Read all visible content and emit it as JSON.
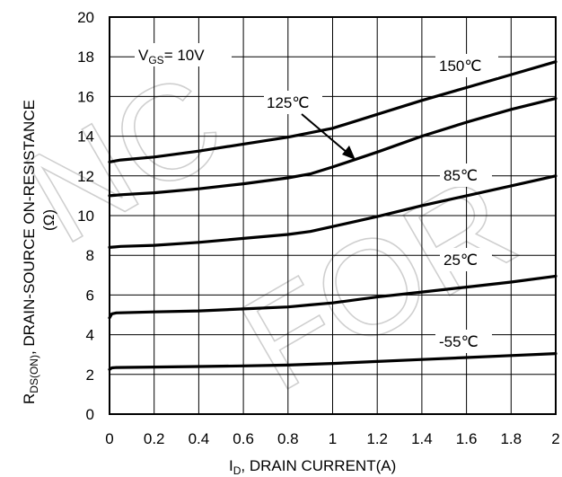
{
  "chart_data": {
    "type": "line",
    "xlabel": {
      "main": "I",
      "sub": "D",
      "rest": ", DRAIN CURRENT(A)"
    },
    "ylabel": {
      "line1_main": "R",
      "line1_sub": "DS(ON)",
      "line1_rest": ",   DRAIN-SOURCE ON-RESISTANCE",
      "line2": "(Ω)"
    },
    "xlim": [
      0,
      2
    ],
    "ylim": [
      0,
      20
    ],
    "x_ticks": [
      0,
      0.2,
      0.4,
      0.6,
      0.8,
      1,
      1.2,
      1.4,
      1.6,
      1.8,
      2
    ],
    "x_tick_labels": [
      "0",
      "0.2",
      "0.4",
      "0.6",
      "0.8",
      "1",
      "1.2",
      "1.4",
      "1.6",
      "1.8",
      "2"
    ],
    "y_ticks": [
      0,
      2,
      4,
      6,
      8,
      10,
      12,
      14,
      16,
      18,
      20
    ],
    "y_tick_labels": [
      "0",
      "2",
      "4",
      "6",
      "8",
      "10",
      "12",
      "14",
      "16",
      "18",
      "20"
    ],
    "grid": true,
    "condition": {
      "main": "V",
      "sub": "GS",
      "rest": "= 10V"
    },
    "series": [
      {
        "name": "150℃",
        "x": [
          0,
          0.05,
          0.2,
          0.4,
          0.6,
          0.8,
          1.0,
          1.2,
          1.4,
          1.6,
          1.8,
          2.0
        ],
        "values": [
          12.7,
          12.8,
          12.95,
          13.25,
          13.6,
          13.95,
          14.4,
          15.1,
          15.8,
          16.45,
          17.1,
          17.75
        ]
      },
      {
        "name": "125℃",
        "x": [
          0,
          0.05,
          0.2,
          0.4,
          0.6,
          0.8,
          0.9,
          1.0,
          1.2,
          1.4,
          1.6,
          1.8,
          2.0
        ],
        "values": [
          11.0,
          11.05,
          11.15,
          11.35,
          11.6,
          11.9,
          12.1,
          12.45,
          13.2,
          14.0,
          14.7,
          15.35,
          15.9
        ]
      },
      {
        "name": "85℃",
        "x": [
          0,
          0.05,
          0.2,
          0.4,
          0.6,
          0.8,
          0.9,
          1.0,
          1.2,
          1.4,
          1.6,
          1.8,
          2.0
        ],
        "values": [
          8.4,
          8.45,
          8.5,
          8.65,
          8.85,
          9.05,
          9.2,
          9.45,
          9.95,
          10.5,
          11.0,
          11.5,
          12.0
        ]
      },
      {
        "name": "25℃",
        "x": [
          0,
          0.01,
          0.03,
          0.2,
          0.4,
          0.6,
          0.8,
          0.9,
          1.0,
          1.2,
          1.4,
          1.6,
          1.8,
          2.0
        ],
        "values": [
          4.85,
          5.05,
          5.1,
          5.15,
          5.2,
          5.3,
          5.4,
          5.5,
          5.6,
          5.9,
          6.15,
          6.4,
          6.65,
          6.95
        ]
      },
      {
        "name": "-55℃",
        "x": [
          0,
          0.01,
          0.03,
          0.2,
          0.4,
          0.6,
          0.8,
          1.0,
          1.2,
          1.4,
          1.6,
          1.8,
          2.0
        ],
        "values": [
          2.25,
          2.33,
          2.35,
          2.37,
          2.4,
          2.43,
          2.47,
          2.55,
          2.65,
          2.75,
          2.85,
          2.95,
          3.05
        ]
      }
    ]
  },
  "watermark": [
    "NC",
    "FOR"
  ],
  "colors": {
    "curve": "#000000",
    "grid": "#000000",
    "watermark": "#cfcfcf"
  }
}
